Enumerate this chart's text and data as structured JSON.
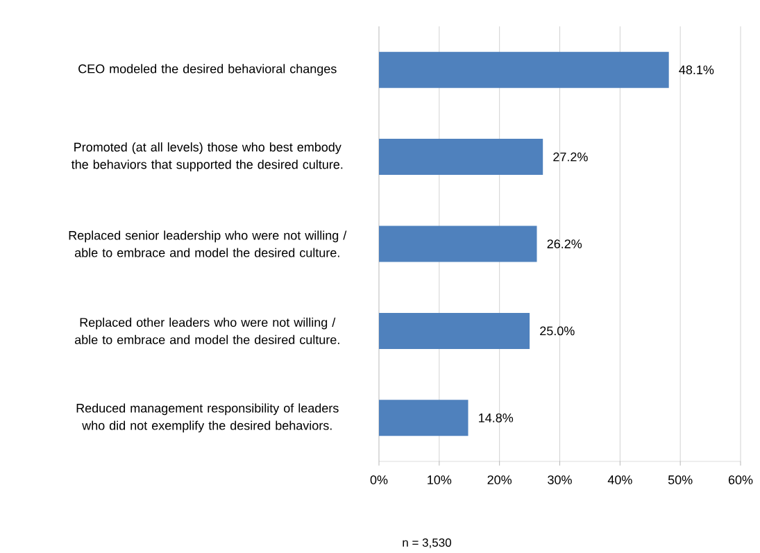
{
  "chart_data": {
    "type": "bar",
    "orientation": "horizontal",
    "categories": [
      "CEO modeled the desired behavioral changes",
      "Promoted (at all levels) those who best embody the behaviors that supported the desired culture.",
      "Replaced senior leadership who were not willing / able to embrace and model the desired culture.",
      "Replaced other leaders who were not willing / able to embrace and model the desired culture.",
      "Reduced management responsibility of leaders who did not exemplify the desired behaviors."
    ],
    "values": [
      48.1,
      27.2,
      26.2,
      25.0,
      14.8
    ],
    "value_labels": [
      "48.1%",
      "27.2%",
      "26.2%",
      "25.0%",
      "14.8%"
    ],
    "color": "#4f81bd",
    "xlim": [
      0,
      60
    ],
    "xticks": [
      {
        "value": 0,
        "label": "0%"
      },
      {
        "value": 10,
        "label": "10%"
      },
      {
        "value": 20,
        "label": "20%"
      },
      {
        "value": 30,
        "label": "30%"
      },
      {
        "value": 40,
        "label": "40%"
      },
      {
        "value": 50,
        "label": "50%"
      },
      {
        "value": 60,
        "label": "60%"
      }
    ],
    "grid": "x",
    "annotations": [
      "n = 3,530"
    ]
  }
}
